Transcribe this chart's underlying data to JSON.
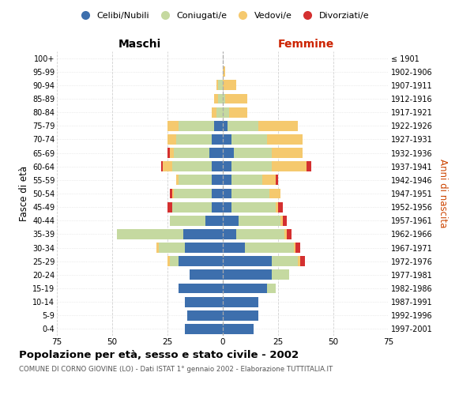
{
  "age_groups": [
    "0-4",
    "5-9",
    "10-14",
    "15-19",
    "20-24",
    "25-29",
    "30-34",
    "35-39",
    "40-44",
    "45-49",
    "50-54",
    "55-59",
    "60-64",
    "65-69",
    "70-74",
    "75-79",
    "80-84",
    "85-89",
    "90-94",
    "95-99",
    "100+"
  ],
  "birth_years": [
    "1997-2001",
    "1992-1996",
    "1987-1991",
    "1982-1986",
    "1977-1981",
    "1972-1976",
    "1967-1971",
    "1962-1966",
    "1957-1961",
    "1952-1956",
    "1947-1951",
    "1942-1946",
    "1937-1941",
    "1932-1936",
    "1927-1931",
    "1922-1926",
    "1917-1921",
    "1912-1916",
    "1907-1911",
    "1902-1906",
    "≤ 1901"
  ],
  "maschi": {
    "celibi": [
      17,
      16,
      17,
      20,
      15,
      20,
      17,
      18,
      8,
      5,
      5,
      5,
      5,
      6,
      5,
      4,
      0,
      0,
      0,
      0,
      0
    ],
    "coniugati": [
      0,
      0,
      0,
      0,
      0,
      4,
      12,
      30,
      16,
      18,
      17,
      15,
      18,
      16,
      16,
      16,
      3,
      2,
      2,
      0,
      0
    ],
    "vedovi": [
      0,
      0,
      0,
      0,
      0,
      1,
      1,
      0,
      0,
      0,
      1,
      1,
      4,
      2,
      4,
      5,
      2,
      2,
      1,
      0,
      0
    ],
    "divorziati": [
      0,
      0,
      0,
      0,
      0,
      0,
      0,
      0,
      0,
      2,
      1,
      0,
      1,
      1,
      0,
      0,
      0,
      0,
      0,
      0,
      0
    ]
  },
  "femmine": {
    "nubili": [
      14,
      16,
      16,
      20,
      22,
      22,
      10,
      6,
      7,
      4,
      4,
      4,
      4,
      5,
      4,
      2,
      0,
      0,
      0,
      0,
      0
    ],
    "coniugate": [
      0,
      0,
      0,
      4,
      8,
      12,
      22,
      22,
      19,
      20,
      17,
      14,
      18,
      17,
      16,
      14,
      3,
      1,
      0,
      0,
      0
    ],
    "vedove": [
      0,
      0,
      0,
      0,
      0,
      1,
      1,
      1,
      1,
      1,
      5,
      6,
      16,
      14,
      16,
      18,
      8,
      10,
      6,
      1,
      0
    ],
    "divorziate": [
      0,
      0,
      0,
      0,
      0,
      2,
      2,
      2,
      2,
      2,
      0,
      1,
      2,
      0,
      0,
      0,
      0,
      0,
      0,
      0,
      0
    ]
  },
  "colors": {
    "celibi": "#3d6fad",
    "coniugati": "#c5d9a0",
    "vedovi": "#f5c96e",
    "divorziati": "#d43030"
  },
  "title": "Popolazione per età, sesso e stato civile - 2002",
  "subtitle": "COMUNE DI CORNO GIOVINE (LO) - Dati ISTAT 1° gennaio 2002 - Elaborazione TUTTITALIA.IT",
  "xlabel_left": "Maschi",
  "xlabel_right": "Femmine",
  "ylabel_left": "Fasce di età",
  "ylabel_right": "Anni di nascita",
  "xlim": 75,
  "background_color": "#ffffff",
  "grid_color": "#cccccc",
  "legend_labels": [
    "Celibi/Nubili",
    "Coniugati/e",
    "Vedovi/e",
    "Divorziati/e"
  ]
}
